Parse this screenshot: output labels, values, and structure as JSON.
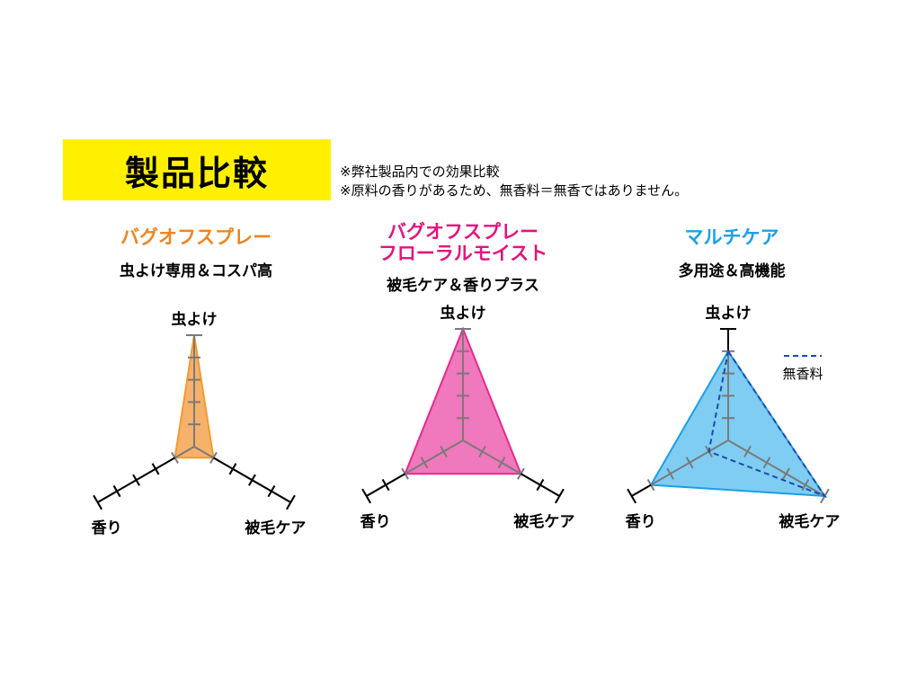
{
  "header": {
    "title": "製品比較",
    "notes": [
      "※弊社製品内での効果比較",
      "※原料の香りがあるため、無香料＝無香ではありません。"
    ]
  },
  "chart_data": [
    {
      "type": "radar",
      "name_lines": [
        "バグオフスプレー"
      ],
      "tagline": "虫よけ専用＆コスパ高",
      "axes": [
        "虫よけ",
        "被毛ケア",
        "香り"
      ],
      "max": 5,
      "values": [
        5,
        1,
        1
      ],
      "color": "#f39a2e",
      "fill": "#f6b26b",
      "name_color": "#f0841e"
    },
    {
      "type": "radar",
      "name_lines": [
        "バグオフスプレー",
        "フローラルモイスト"
      ],
      "tagline": "被毛ケア＆香りプラス",
      "axes": [
        "虫よけ",
        "被毛ケア",
        "香り"
      ],
      "max": 5,
      "values": [
        5,
        3,
        3
      ],
      "color": "#e52b8a",
      "fill": "#f078bd",
      "name_color": "#e4147c"
    },
    {
      "type": "radar",
      "name_lines": [
        "マルチケア"
      ],
      "tagline": "多用途＆高機能",
      "axes": [
        "虫よけ",
        "被毛ケア",
        "香り"
      ],
      "max": 5,
      "values": [
        4,
        5,
        4
      ],
      "color": "#1a9fe6",
      "fill": "#7fcdf3",
      "name_color": "#1ea0e6",
      "extra_series": {
        "name": "無香料",
        "values": [
          4,
          5,
          1
        ],
        "color": "#1f4aa8",
        "dashed": true
      }
    }
  ]
}
